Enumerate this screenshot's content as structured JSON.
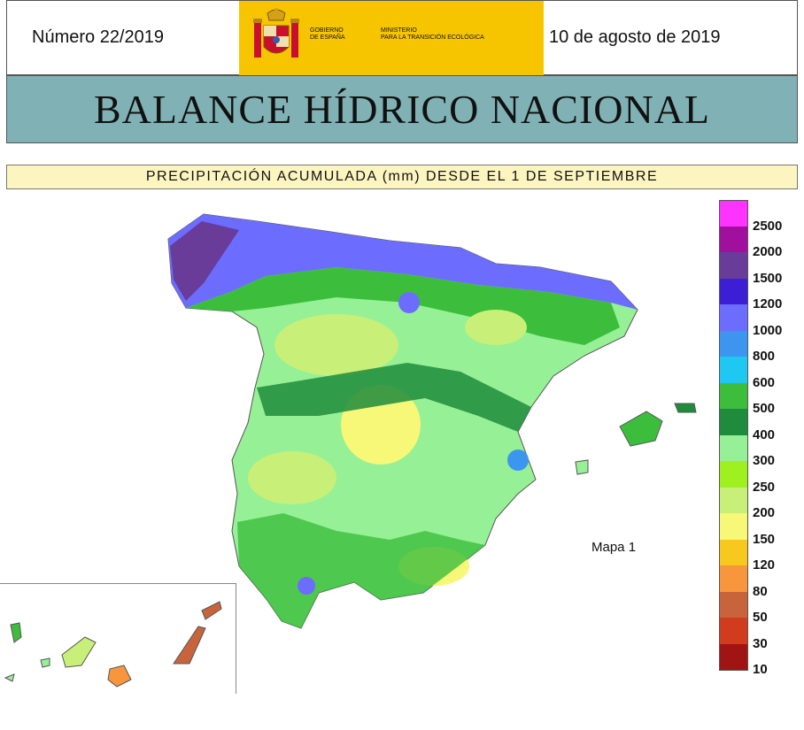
{
  "header": {
    "issue_number": "Número 22/2019",
    "date": "10 de agosto de 2019",
    "logo": {
      "government": "GOBIERNO\nDE ESPAÑA",
      "ministry": "MINISTERIO\nPARA LA TRANSICIÓN ECOLÓGICA",
      "color": "#f7c500",
      "icon": "coat-of-arms-icon"
    }
  },
  "title": "BALANCE HÍDRICO NACIONAL",
  "subtitle": "PRECIPITACIÓN ACUMULADA (mm) DESDE EL 1 DE SEPTIEMBRE",
  "map": {
    "label": "Mapa 1",
    "region": "Peninsula, Baleares y Canarias"
  },
  "legend": {
    "items": [
      {
        "label": "2500",
        "color": "#ff33ff"
      },
      {
        "label": "2000",
        "color": "#a0109c"
      },
      {
        "label": "1500",
        "color": "#683c98"
      },
      {
        "label": "1200",
        "color": "#3c1ed6"
      },
      {
        "label": "1000",
        "color": "#6c6cff"
      },
      {
        "label": "800",
        "color": "#3c96f0"
      },
      {
        "label": "600",
        "color": "#1ec8f0"
      },
      {
        "label": "500",
        "color": "#3cbe3c"
      },
      {
        "label": "400",
        "color": "#1e8c3c"
      },
      {
        "label": "300",
        "color": "#96f096"
      },
      {
        "label": "250",
        "color": "#9ef01e"
      },
      {
        "label": "200",
        "color": "#c8f078"
      },
      {
        "label": "150",
        "color": "#f7f778"
      },
      {
        "label": "120",
        "color": "#f7c81e"
      },
      {
        "label": "80",
        "color": "#f7963c"
      },
      {
        "label": "50",
        "color": "#c8643c"
      },
      {
        "label": "30",
        "color": "#d23c1e"
      },
      {
        "label": "10",
        "color": "#a01414"
      }
    ]
  }
}
